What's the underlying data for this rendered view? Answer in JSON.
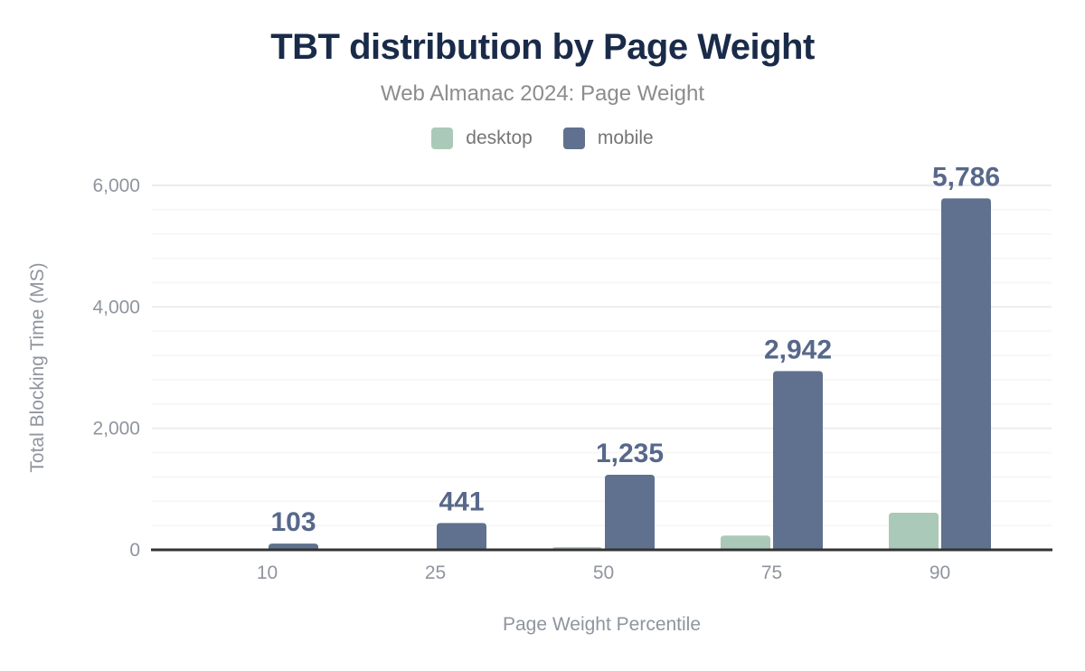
{
  "header": {
    "title": "TBT distribution by Page Weight",
    "subtitle": "Web Almanac 2024: Page Weight"
  },
  "chart_data": {
    "type": "bar",
    "title": "TBT distribution by Page Weight",
    "subtitle": "Web Almanac 2024: Page Weight",
    "categories": [
      "10",
      "25",
      "50",
      "75",
      "90"
    ],
    "series": [
      {
        "name": "desktop",
        "color": "#abc9b8",
        "values": [
          2,
          10,
          45,
          235,
          610
        ],
        "data_labels": false
      },
      {
        "name": "mobile",
        "color": "#5f718e",
        "values": [
          103,
          441,
          1235,
          2942,
          5786
        ],
        "data_labels": true
      }
    ],
    "xlabel": "Page Weight Percentile",
    "ylabel": "Total Blocking Time (MS)",
    "ylim": [
      0,
      6000
    ],
    "y_major_ticks": [
      0,
      2000,
      4000,
      6000
    ],
    "y_minor_step": 400,
    "grid": true,
    "legend_position": "top"
  },
  "style": {
    "title_color": "#1a2b49",
    "subtitle_color": "#8c8c8c",
    "legend_text_color": "#757575",
    "axis_text_color": "#8f959e",
    "data_label_color": "#57688a",
    "axis_line_color": "#333333",
    "grid_minor_color": "#f7f7f7",
    "grid_major_color": "#ececec",
    "background_color": "#ffffff"
  }
}
